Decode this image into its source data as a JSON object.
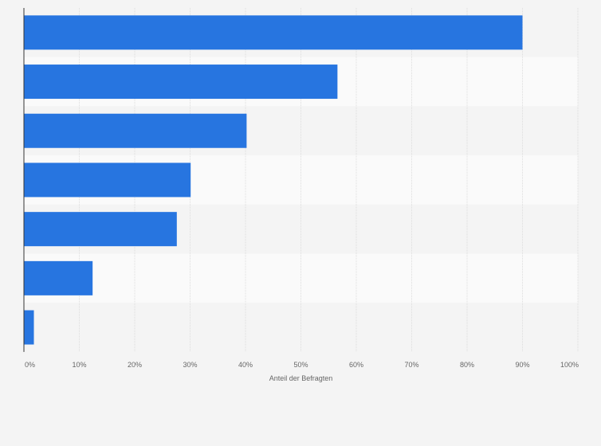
{
  "colors": {
    "bar": "#2775e0",
    "background": "#f4f4f4",
    "band_light": "#fafafa",
    "band_dark": "#f4f4f4",
    "grid": "#dddddd",
    "axis": "#333333",
    "text": "#666666"
  },
  "chart_data": {
    "type": "bar",
    "orientation": "horizontal",
    "categories": [
      "",
      "",
      "",
      "",
      "",
      "",
      ""
    ],
    "values": [
      90,
      56.6,
      40.2,
      30.1,
      27.6,
      12.4,
      1.8
    ],
    "xlabel": "Anteil der Befragten",
    "ylabel": "",
    "xlim": [
      0,
      100
    ],
    "ticks": [
      0,
      10,
      20,
      30,
      40,
      50,
      60,
      70,
      80,
      90,
      100
    ],
    "tick_labels": [
      "0%",
      "10%",
      "20%",
      "30%",
      "40%",
      "50%",
      "60%",
      "70%",
      "80%",
      "90%",
      "100%"
    ],
    "grid": true,
    "legend": "none"
  }
}
